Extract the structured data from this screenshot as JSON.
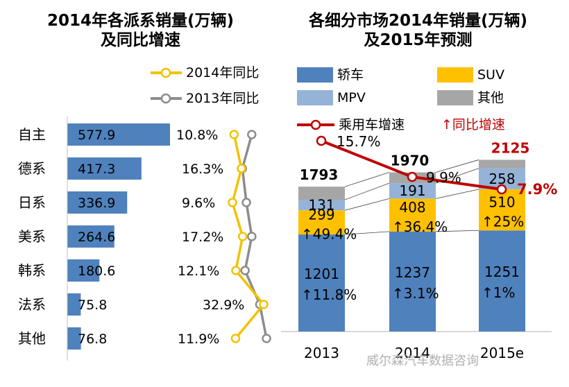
{
  "left": {
    "title_line1": "2014年各派系销量(万辆)",
    "title_line2": "及同比增速",
    "legend": [
      {
        "label": "2014年同比",
        "color": "#F2C200"
      },
      {
        "label": "2013年同比",
        "color": "#8C8C8C"
      }
    ]
  },
  "right": {
    "title_line1": "各细分市场2014年销量(万辆)",
    "title_line2": "及2015年预测",
    "legend": {
      "sedan": "轿车",
      "suv": "SUV",
      "mpv": "MPV",
      "other": "其他",
      "growth_line": "乘用车增速",
      "yoy_arrow": "↑同比增速"
    }
  },
  "watermark": "威尔森汽车数据咨询",
  "chart_data": [
    {
      "type": "bar",
      "orientation": "horizontal",
      "title": "2014年各派系销量(万辆) 及同比增速",
      "categories": [
        "自主",
        "德系",
        "日系",
        "美系",
        "韩系",
        "法系",
        "其他"
      ],
      "values": [
        577.9,
        417.3,
        336.9,
        264.6,
        180.6,
        75.8,
        76.8
      ],
      "value_labels": [
        "577.9",
        "417.3",
        "336.9",
        "264.6",
        "180.6",
        "75.8",
        "76.8"
      ],
      "bar_color": "#4F81BD",
      "growth_2014_labels": [
        "10.8%",
        "16.3%",
        "9.6%",
        "17.2%",
        "12.1%",
        "32.9%",
        "11.9%"
      ],
      "lines": [
        {
          "name": "2014年同比",
          "color": "#F2C200",
          "values": [
            10.8,
            16.3,
            9.6,
            17.2,
            12.1,
            32.9,
            11.9
          ]
        },
        {
          "name": "2013年同比",
          "color": "#8C8C8C",
          "values": [
            24,
            17,
            20,
            24,
            19,
            30,
            35
          ]
        }
      ]
    },
    {
      "type": "stacked_bar",
      "title": "各细分市场2014年销量(万辆) 及2015年预测",
      "categories": [
        "2013",
        "2014",
        "2015e"
      ],
      "series": [
        {
          "name": "轿车",
          "color": "#4F81BD",
          "values": [
            1201,
            1237,
            1251
          ],
          "labels": [
            "1201",
            "1237",
            "1251"
          ]
        },
        {
          "name": "SUV",
          "color": "#FFC000",
          "values": [
            299,
            408,
            510
          ],
          "labels": [
            "299",
            "408",
            "510"
          ]
        },
        {
          "name": "MPV",
          "color": "#95B3D7",
          "values": [
            131,
            191,
            258
          ],
          "labels": [
            "131",
            "191",
            "258"
          ]
        },
        {
          "name": "其他",
          "color": "#A6A6A6",
          "values": [
            162,
            134,
            106
          ]
        }
      ],
      "totals": [
        "1793",
        "1970",
        "2125"
      ],
      "total_colors": [
        "#000000",
        "#000000",
        "#C00000"
      ],
      "sedan_growth": [
        "↑11.8%",
        "↑3.1%",
        "↑1%"
      ],
      "suv_growth": [
        "↑49.4%",
        "↑36.4%",
        "↑25%"
      ],
      "growth_line": {
        "name": "乘用车增速",
        "color": "#C00000",
        "values": [
          15.7,
          9.9,
          7.9
        ],
        "labels": [
          "15.7%",
          "9.9%",
          "7.9%"
        ]
      },
      "ylim": [
        0,
        2300
      ]
    }
  ]
}
